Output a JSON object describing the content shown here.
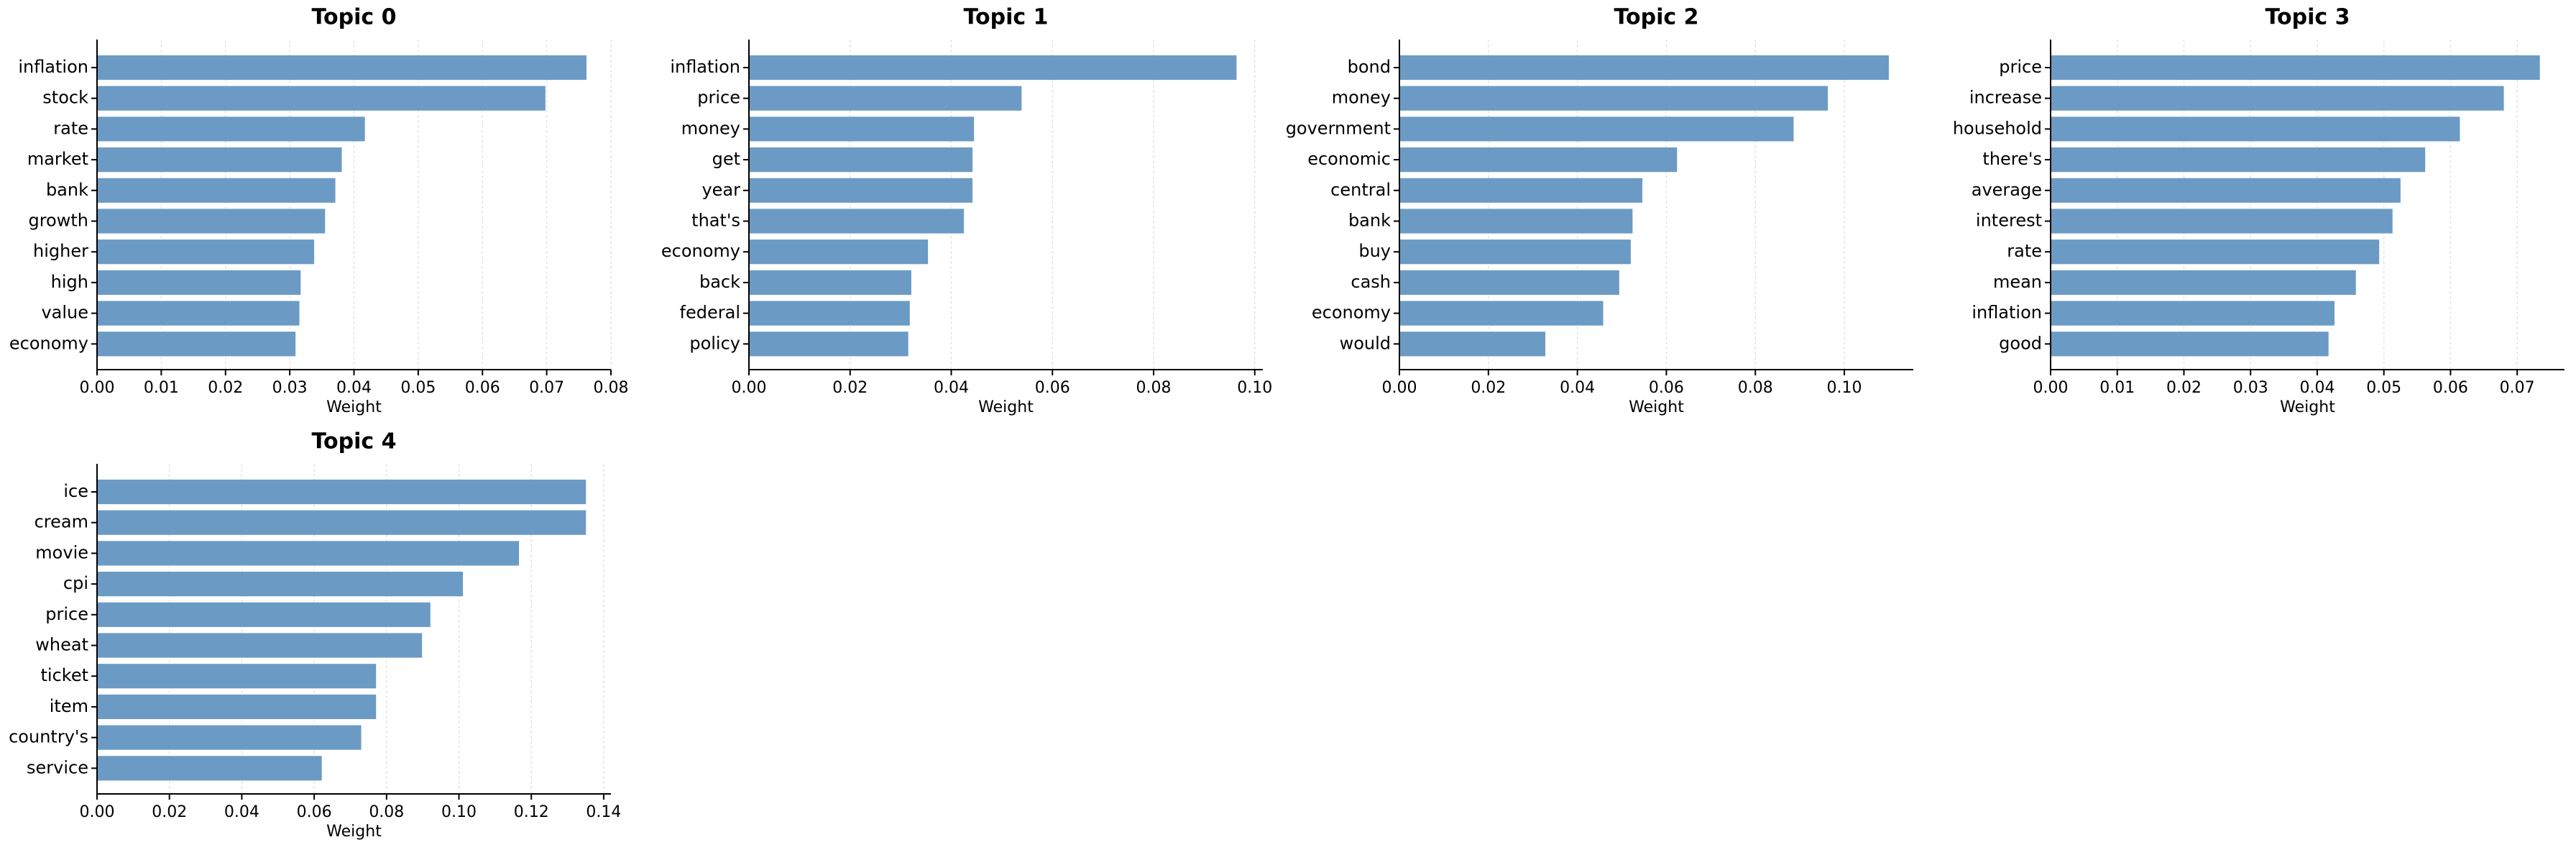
{
  "chart_data": [
    {
      "type": "bar",
      "orientation": "horizontal",
      "title": "Topic 0",
      "xlabel": "Weight",
      "color": "#6b9bc4",
      "grid": true,
      "categories": [
        "inflation",
        "stock",
        "rate",
        "market",
        "bank",
        "growth",
        "higher",
        "high",
        "value",
        "economy"
      ],
      "values": [
        0.0762,
        0.0698,
        0.0417,
        0.0381,
        0.0371,
        0.0355,
        0.0338,
        0.0317,
        0.0315,
        0.0309
      ],
      "xlim": [
        0,
        0.08
      ],
      "xticks": [
        {
          "value": 0,
          "label": "0.00"
        },
        {
          "value": 0.01,
          "label": "0.01"
        },
        {
          "value": 0.02,
          "label": "0.02"
        },
        {
          "value": 0.03,
          "label": "0.03"
        },
        {
          "value": 0.04,
          "label": "0.04"
        },
        {
          "value": 0.05,
          "label": "0.05"
        },
        {
          "value": 0.06,
          "label": "0.06"
        },
        {
          "value": 0.07,
          "label": "0.07"
        },
        {
          "value": 0.08,
          "label": "0.08"
        }
      ]
    },
    {
      "type": "bar",
      "orientation": "horizontal",
      "title": "Topic 1",
      "xlabel": "Weight",
      "color": "#6b9bc4",
      "grid": true,
      "categories": [
        "inflation",
        "price",
        "money",
        "get",
        "year",
        "that's",
        "economy",
        "back",
        "federal",
        "policy"
      ],
      "values": [
        0.0964,
        0.0539,
        0.0445,
        0.0442,
        0.0442,
        0.0425,
        0.0354,
        0.0321,
        0.0318,
        0.0315
      ],
      "xlim": [
        0,
        0.1016
      ],
      "xticks": [
        {
          "value": 0,
          "label": "0.00"
        },
        {
          "value": 0.02,
          "label": "0.02"
        },
        {
          "value": 0.04,
          "label": "0.04"
        },
        {
          "value": 0.06,
          "label": "0.06"
        },
        {
          "value": 0.08,
          "label": "0.08"
        },
        {
          "value": 0.1,
          "label": "0.10"
        }
      ]
    },
    {
      "type": "bar",
      "orientation": "horizontal",
      "title": "Topic 2",
      "xlabel": "Weight",
      "color": "#6b9bc4",
      "grid": true,
      "categories": [
        "bond",
        "money",
        "government",
        "economic",
        "central",
        "bank",
        "buy",
        "cash",
        "economy",
        "would"
      ],
      "values": [
        0.11,
        0.0963,
        0.0886,
        0.0624,
        0.0546,
        0.0524,
        0.052,
        0.0494,
        0.0458,
        0.0328
      ],
      "xlim": [
        0,
        0.1155
      ],
      "xticks": [
        {
          "value": 0,
          "label": "0.00"
        },
        {
          "value": 0.02,
          "label": "0.02"
        },
        {
          "value": 0.04,
          "label": "0.04"
        },
        {
          "value": 0.06,
          "label": "0.06"
        },
        {
          "value": 0.08,
          "label": "0.08"
        },
        {
          "value": 0.1,
          "label": "0.10"
        }
      ]
    },
    {
      "type": "bar",
      "orientation": "horizontal",
      "title": "Topic 3",
      "xlabel": "Weight",
      "color": "#6b9bc4",
      "grid": true,
      "categories": [
        "price",
        "increase",
        "household",
        "there's",
        "average",
        "interest",
        "rate",
        "mean",
        "inflation",
        "good"
      ],
      "values": [
        0.0734,
        0.068,
        0.0614,
        0.0562,
        0.0525,
        0.0513,
        0.0493,
        0.0458,
        0.0426,
        0.0417
      ],
      "xlim": [
        0,
        0.0771
      ],
      "xticks": [
        {
          "value": 0,
          "label": "0.00"
        },
        {
          "value": 0.01,
          "label": "0.01"
        },
        {
          "value": 0.02,
          "label": "0.02"
        },
        {
          "value": 0.03,
          "label": "0.03"
        },
        {
          "value": 0.04,
          "label": "0.04"
        },
        {
          "value": 0.05,
          "label": "0.05"
        },
        {
          "value": 0.06,
          "label": "0.06"
        },
        {
          "value": 0.07,
          "label": "0.07"
        }
      ]
    },
    {
      "type": "bar",
      "orientation": "horizontal",
      "title": "Topic 4",
      "xlabel": "Weight",
      "color": "#6b9bc4",
      "grid": true,
      "categories": [
        "ice",
        "cream",
        "movie",
        "cpi",
        "price",
        "wheat",
        "ticket",
        "item",
        "country's",
        "service"
      ],
      "values": [
        0.1351,
        0.1351,
        0.1166,
        0.1011,
        0.0921,
        0.0898,
        0.0771,
        0.0771,
        0.073,
        0.0621
      ],
      "xlim": [
        0,
        0.142
      ],
      "xticks": [
        {
          "value": 0,
          "label": "0.00"
        },
        {
          "value": 0.02,
          "label": "0.02"
        },
        {
          "value": 0.04,
          "label": "0.04"
        },
        {
          "value": 0.06,
          "label": "0.06"
        },
        {
          "value": 0.08,
          "label": "0.08"
        },
        {
          "value": 0.1,
          "label": "0.10"
        },
        {
          "value": 0.12,
          "label": "0.12"
        },
        {
          "value": 0.14,
          "label": "0.14"
        }
      ]
    }
  ]
}
